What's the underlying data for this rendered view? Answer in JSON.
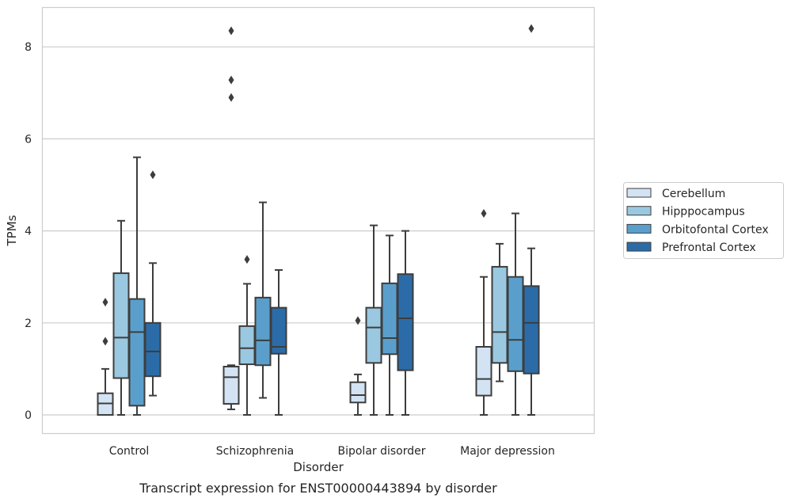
{
  "chart_data": {
    "type": "box",
    "title": "",
    "caption": "Transcript expression for ENST00000443894 by disorder",
    "xlabel": "Disorder",
    "ylabel": "TPMs",
    "ylim": [
      -0.4,
      8.85
    ],
    "yticks": [
      0,
      2,
      4,
      6,
      8
    ],
    "grid": "horizontal",
    "legend_position": "right",
    "categories": [
      "Control",
      "Schizophrenia",
      "Bipolar disorder",
      "Major depression"
    ],
    "series": [
      {
        "name": "Cerebellum",
        "color": "#d3e3f3",
        "boxes": [
          {
            "whislo": 0.0,
            "q1": 0.0,
            "med": 0.25,
            "q3": 0.47,
            "whishi": 1.0,
            "fliers": [
              1.6,
              2.45
            ]
          },
          {
            "whislo": 0.12,
            "q1": 0.24,
            "med": 0.82,
            "q3": 1.05,
            "whishi": 1.08,
            "fliers": [
              6.9,
              7.28,
              8.35
            ]
          },
          {
            "whislo": 0.0,
            "q1": 0.27,
            "med": 0.43,
            "q3": 0.71,
            "whishi": 0.88,
            "fliers": [
              2.05
            ]
          },
          {
            "whislo": 0.0,
            "q1": 0.42,
            "med": 0.78,
            "q3": 1.48,
            "whishi": 3.0,
            "fliers": [
              4.38
            ]
          }
        ]
      },
      {
        "name": "Hipppocampus",
        "color": "#9ac8e0",
        "boxes": [
          {
            "whislo": 0.0,
            "q1": 0.8,
            "med": 1.68,
            "q3": 3.08,
            "whishi": 4.22,
            "fliers": []
          },
          {
            "whislo": 0.0,
            "q1": 1.1,
            "med": 1.45,
            "q3": 1.93,
            "whishi": 2.85,
            "fliers": [
              3.38
            ]
          },
          {
            "whislo": 0.0,
            "q1": 1.13,
            "med": 1.9,
            "q3": 2.33,
            "whishi": 4.12,
            "fliers": []
          },
          {
            "whislo": 0.73,
            "q1": 1.13,
            "med": 1.8,
            "q3": 3.22,
            "whishi": 3.72,
            "fliers": []
          }
        ]
      },
      {
        "name": "Orbitofontal Cortex",
        "color": "#5a9fcc",
        "boxes": [
          {
            "whislo": 0.0,
            "q1": 0.2,
            "med": 1.8,
            "q3": 2.52,
            "whishi": 5.6,
            "fliers": []
          },
          {
            "whislo": 0.37,
            "q1": 1.08,
            "med": 1.62,
            "q3": 2.55,
            "whishi": 4.62,
            "fliers": []
          },
          {
            "whislo": 0.0,
            "q1": 1.32,
            "med": 1.67,
            "q3": 2.86,
            "whishi": 3.9,
            "fliers": []
          },
          {
            "whislo": 0.0,
            "q1": 0.95,
            "med": 1.63,
            "q3": 3.0,
            "whishi": 4.38,
            "fliers": []
          }
        ]
      },
      {
        "name": "Prefrontal Cortex",
        "color": "#2b6ca8",
        "boxes": [
          {
            "whislo": 0.42,
            "q1": 0.84,
            "med": 1.38,
            "q3": 2.0,
            "whishi": 3.3,
            "fliers": [
              5.22
            ]
          },
          {
            "whislo": 0.0,
            "q1": 1.33,
            "med": 1.48,
            "q3": 2.33,
            "whishi": 3.15,
            "fliers": []
          },
          {
            "whislo": 0.0,
            "q1": 0.97,
            "med": 2.1,
            "q3": 3.06,
            "whishi": 4.0,
            "fliers": []
          },
          {
            "whislo": 0.0,
            "q1": 0.9,
            "med": 2.0,
            "q3": 2.8,
            "whishi": 3.62,
            "fliers": [
              8.4
            ]
          }
        ]
      }
    ]
  }
}
